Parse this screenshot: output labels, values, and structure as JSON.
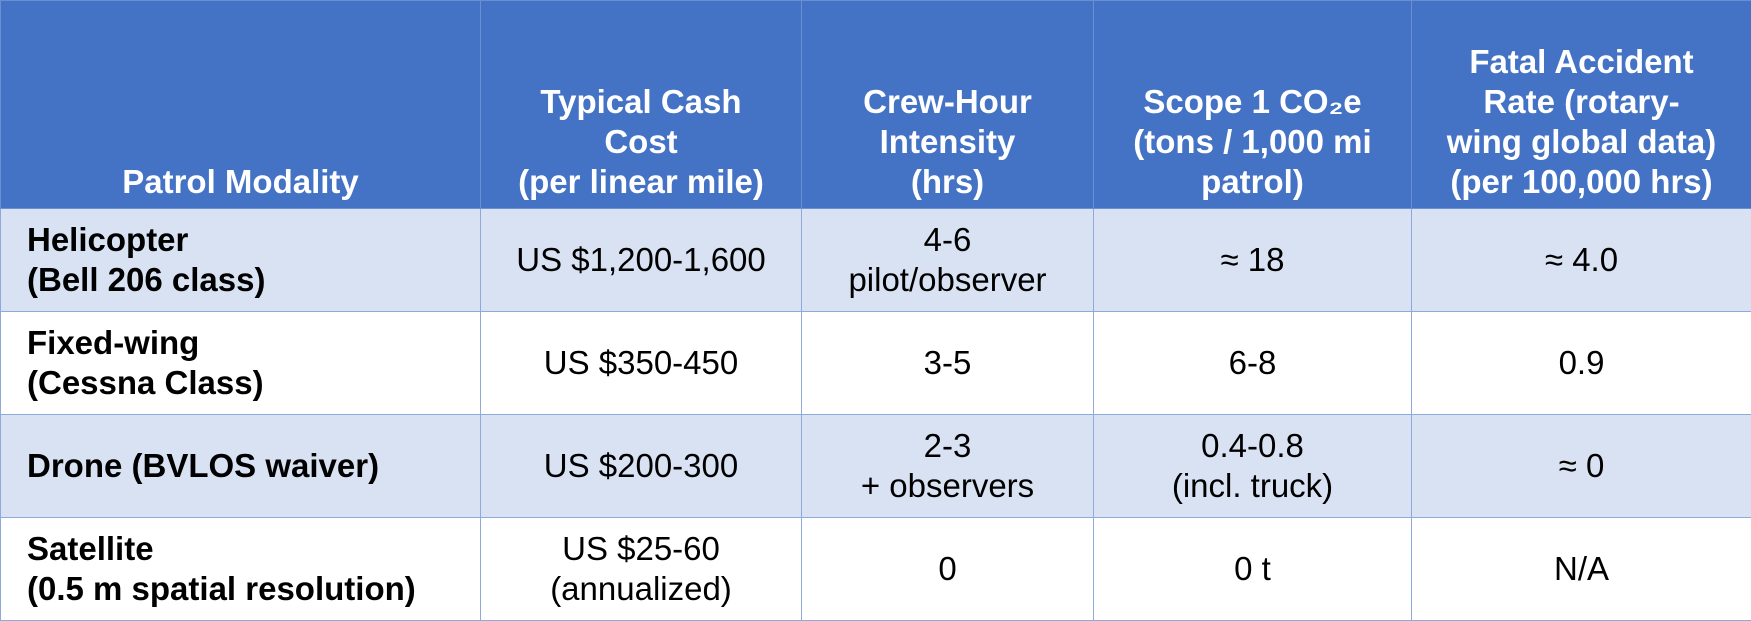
{
  "table": {
    "headers": [
      [
        "Patrol Modality"
      ],
      [
        "Typical Cash",
        "Cost",
        "(per linear mile)"
      ],
      [
        "Crew-Hour",
        "Intensity",
        "(hrs)"
      ],
      [
        "Scope 1 CO₂e",
        "(tons / 1,000 mi",
        "patrol)"
      ],
      [
        "Fatal Accident",
        "Rate (rotary-",
        "wing global data)",
        "(per 100,000 hrs)"
      ]
    ],
    "rows": [
      {
        "modality": [
          "Helicopter",
          "(Bell 206 class)"
        ],
        "cost": [
          "US $1,200-1,600"
        ],
        "crew": [
          "4-6",
          "pilot/observer"
        ],
        "co2": [
          "≈ 18"
        ],
        "fatal": [
          "≈ 4.0"
        ]
      },
      {
        "modality": [
          "Fixed-wing",
          "(Cessna Class)"
        ],
        "cost": [
          "US $350-450"
        ],
        "crew": [
          "3-5"
        ],
        "co2": [
          "6-8"
        ],
        "fatal": [
          "0.9"
        ]
      },
      {
        "modality": [
          "Drone (BVLOS waiver)"
        ],
        "cost": [
          "US $200-300"
        ],
        "crew": [
          "2-3",
          "+ observers"
        ],
        "co2": [
          "0.4-0.8",
          "(incl. truck)"
        ],
        "fatal": [
          "≈ 0"
        ]
      },
      {
        "modality": [
          "Satellite",
          "(0.5 m spatial resolution)"
        ],
        "cost": [
          "US $25-60",
          "(annualized)"
        ],
        "crew": [
          "0"
        ],
        "co2": [
          "0 t"
        ],
        "fatal": [
          "N/A"
        ]
      }
    ]
  },
  "colors": {
    "header_bg": "#4472c4",
    "row_band": "#d9e2f3",
    "row_plain": "#ffffff",
    "border": "#8eaadb"
  }
}
